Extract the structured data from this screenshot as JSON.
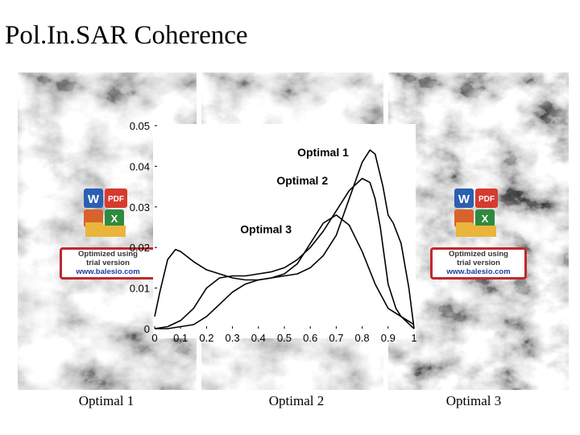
{
  "title": "Pol.In.SAR Coherence",
  "captions": [
    "Optimal 1",
    "Optimal 2",
    "Optimal 3"
  ],
  "watermark": {
    "line1": "Optimized using",
    "line2": "trial version",
    "line3": "www.balesio.com",
    "icons": [
      "word-icon",
      "pdf-icon",
      "powerpoint-icon",
      "excel-icon",
      "folder-icon"
    ]
  },
  "chart_data": {
    "type": "line",
    "title": "",
    "xlabel": "",
    "ylabel": "",
    "xlim": [
      0,
      1
    ],
    "ylim": [
      0,
      0.05
    ],
    "xticks": [
      "0",
      "0.1",
      "0.2",
      "0.3",
      "0.4",
      "0.5",
      "0.6",
      "0.7",
      "0.8",
      "0.9",
      "1"
    ],
    "yticks": [
      "0",
      "0.01",
      "0.02",
      "0.03",
      "0.04",
      "0.05"
    ],
    "grid": false,
    "series": [
      {
        "name": "Optimal 1",
        "x": [
          0,
          0.05,
          0.1,
          0.15,
          0.2,
          0.25,
          0.3,
          0.35,
          0.4,
          0.45,
          0.5,
          0.55,
          0.6,
          0.65,
          0.7,
          0.75,
          0.8,
          0.83,
          0.85,
          0.88,
          0.9,
          0.92,
          0.95,
          0.98,
          1.0
        ],
        "y": [
          0,
          0,
          0.0005,
          0.001,
          0.003,
          0.006,
          0.009,
          0.011,
          0.012,
          0.0125,
          0.013,
          0.0135,
          0.015,
          0.018,
          0.023,
          0.032,
          0.041,
          0.044,
          0.043,
          0.035,
          0.028,
          0.026,
          0.021,
          0.01,
          0
        ]
      },
      {
        "name": "Optimal 2",
        "x": [
          0,
          0.05,
          0.1,
          0.15,
          0.2,
          0.25,
          0.3,
          0.35,
          0.4,
          0.45,
          0.5,
          0.55,
          0.6,
          0.65,
          0.7,
          0.75,
          0.8,
          0.83,
          0.85,
          0.87,
          0.9,
          0.93,
          0.95,
          1.0
        ],
        "y": [
          0,
          0.0005,
          0.002,
          0.005,
          0.01,
          0.0125,
          0.013,
          0.013,
          0.0135,
          0.014,
          0.015,
          0.017,
          0.02,
          0.024,
          0.029,
          0.034,
          0.037,
          0.036,
          0.032,
          0.025,
          0.011,
          0.005,
          0.003,
          0
        ]
      },
      {
        "name": "Optimal 3",
        "x": [
          0,
          0.02,
          0.05,
          0.08,
          0.1,
          0.15,
          0.2,
          0.25,
          0.3,
          0.35,
          0.4,
          0.45,
          0.5,
          0.55,
          0.6,
          0.65,
          0.7,
          0.75,
          0.8,
          0.85,
          0.9,
          0.95,
          1.0
        ],
        "y": [
          0.003,
          0.009,
          0.017,
          0.0195,
          0.019,
          0.0165,
          0.0145,
          0.0135,
          0.0125,
          0.012,
          0.012,
          0.0125,
          0.0135,
          0.016,
          0.021,
          0.026,
          0.028,
          0.0255,
          0.019,
          0.011,
          0.005,
          0.003,
          0.001
        ]
      }
    ]
  }
}
